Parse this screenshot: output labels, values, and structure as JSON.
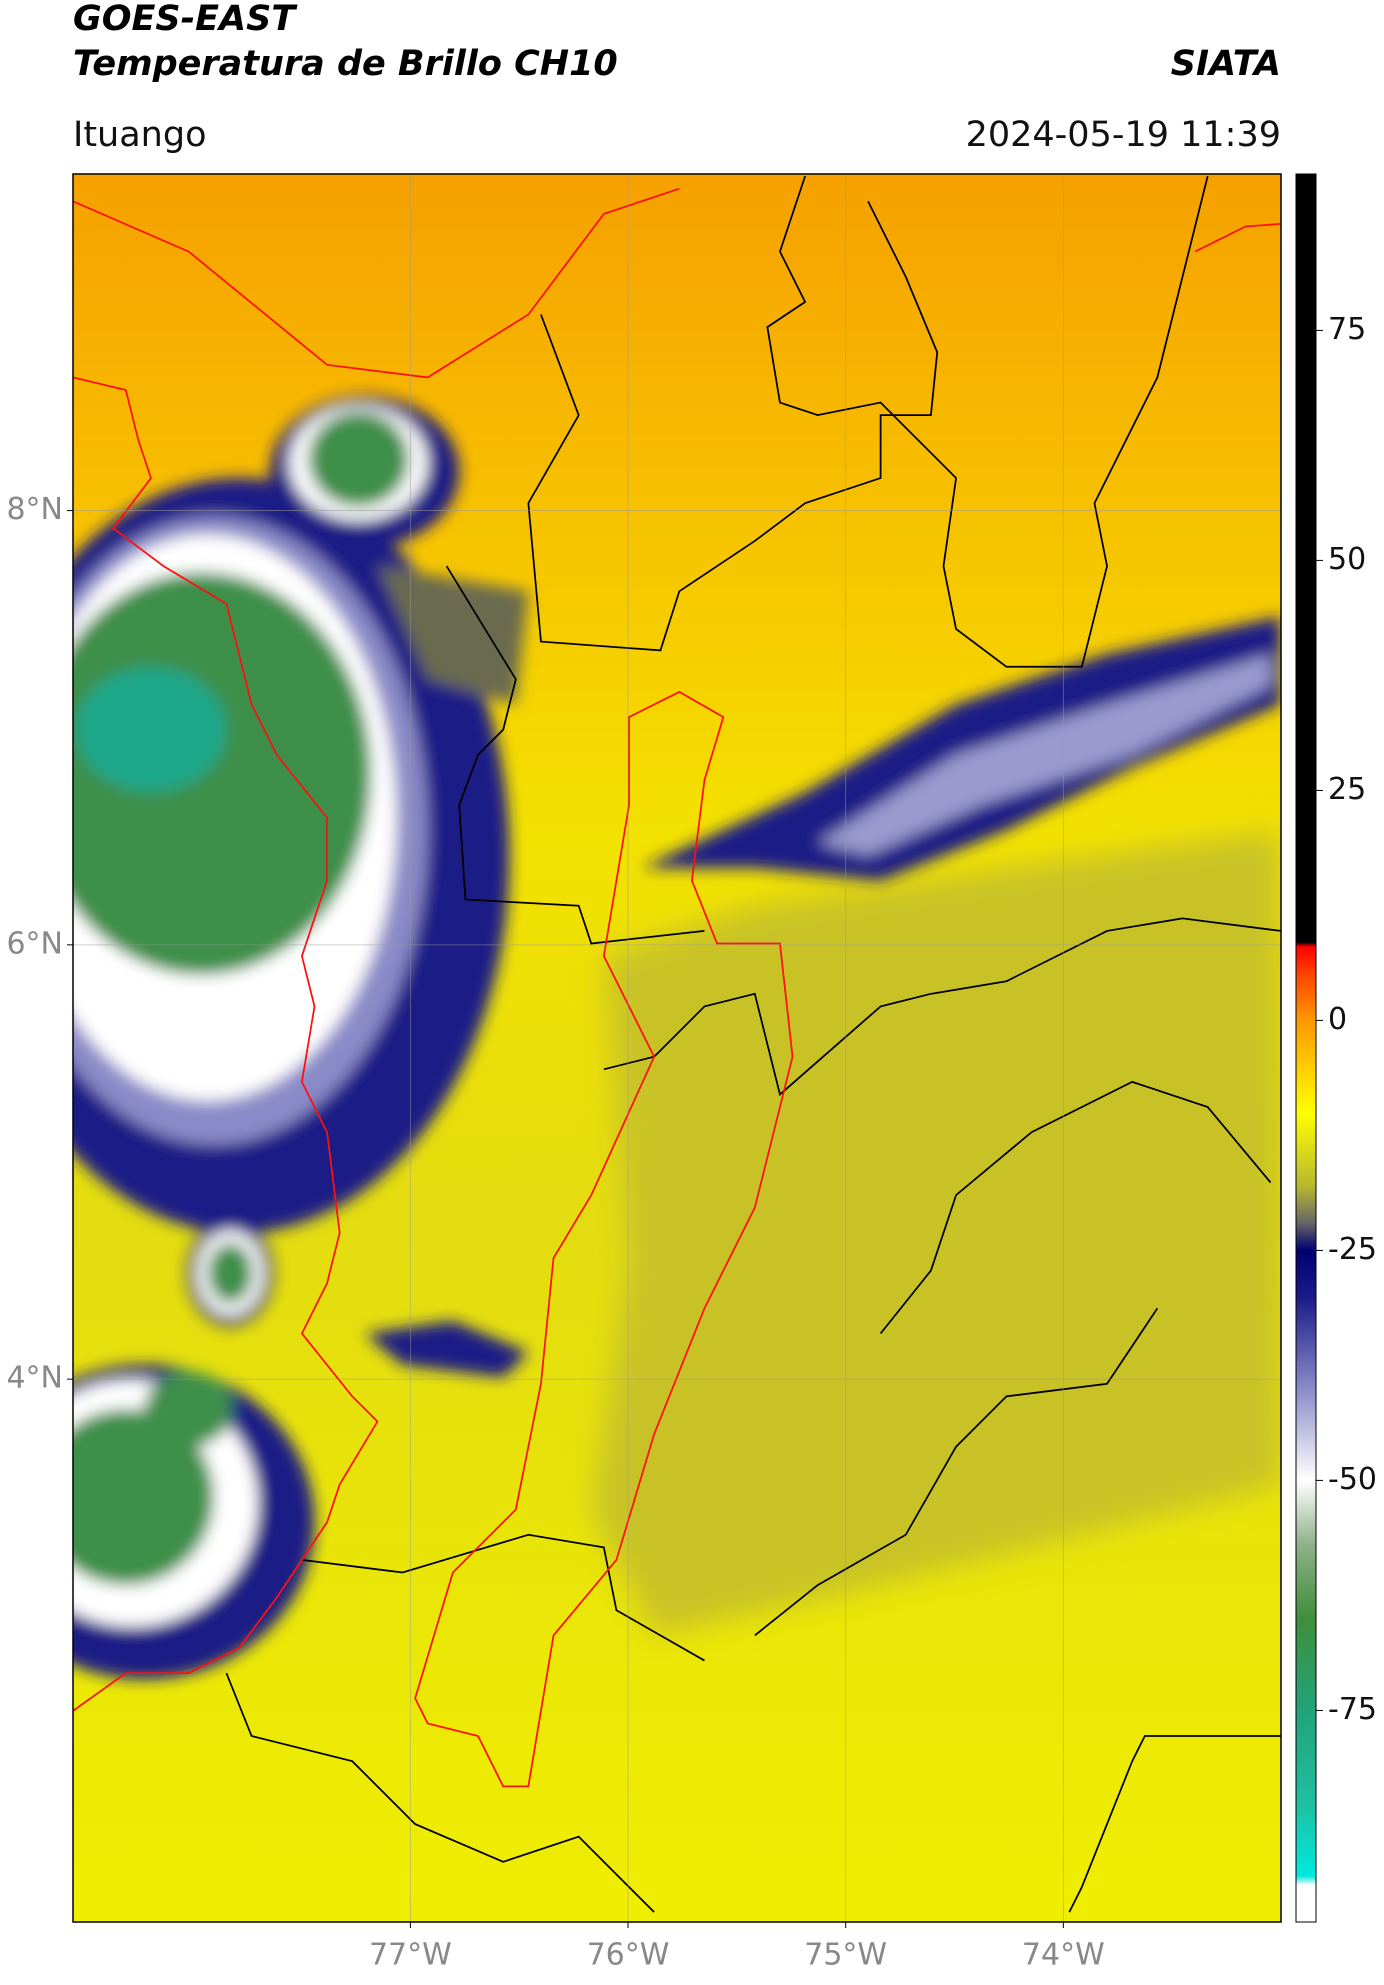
{
  "chart_data": {
    "type": "map",
    "title": "GOES-EAST",
    "subtitle": "Temperatura de Brillo CH10",
    "source": "SIATA",
    "location": "Ituango",
    "datetime": "2024-05-19 11:39",
    "xlim": [
      -78.55,
      -73.0
    ],
    "ylim": [
      1.5,
      9.55
    ],
    "xticks": [
      {
        "value": -77,
        "label": "77°W"
      },
      {
        "value": -76,
        "label": "76°W"
      },
      {
        "value": -75,
        "label": "75°W"
      },
      {
        "value": -74,
        "label": "74°W"
      }
    ],
    "yticks": [
      {
        "value": 4,
        "label": "4°N"
      },
      {
        "value": 6,
        "label": "6°N"
      },
      {
        "value": 8,
        "label": "8°N"
      }
    ],
    "grid": true,
    "clim": [
      -98,
      92
    ],
    "cticks": [
      -75,
      -50,
      -25,
      0,
      25,
      50,
      75
    ],
    "colormap": [
      {
        "value": -98,
        "color": "#ffffff"
      },
      {
        "value": -94,
        "color": "#ffffff"
      },
      {
        "value": -93,
        "color": "#00e8e0"
      },
      {
        "value": -85,
        "color": "#1fbf9f"
      },
      {
        "value": -75,
        "color": "#22a37a"
      },
      {
        "value": -65,
        "color": "#3e8f3a"
      },
      {
        "value": -57,
        "color": "#8fb08a"
      },
      {
        "value": -50,
        "color": "#ffffff"
      },
      {
        "value": -40,
        "color": "#8a8ac8"
      },
      {
        "value": -30,
        "color": "#1a1a88"
      },
      {
        "value": -25,
        "color": "#000070"
      },
      {
        "value": -22,
        "color": "#666666"
      },
      {
        "value": -18,
        "color": "#b8b830"
      },
      {
        "value": -10,
        "color": "#ffff00"
      },
      {
        "value": 0,
        "color": "#ff9900"
      },
      {
        "value": 5,
        "color": "#ff4400"
      },
      {
        "value": 8,
        "color": "#ff0000"
      },
      {
        "value": 8.5,
        "color": "#000000"
      },
      {
        "value": 92,
        "color": "#000000"
      }
    ]
  }
}
